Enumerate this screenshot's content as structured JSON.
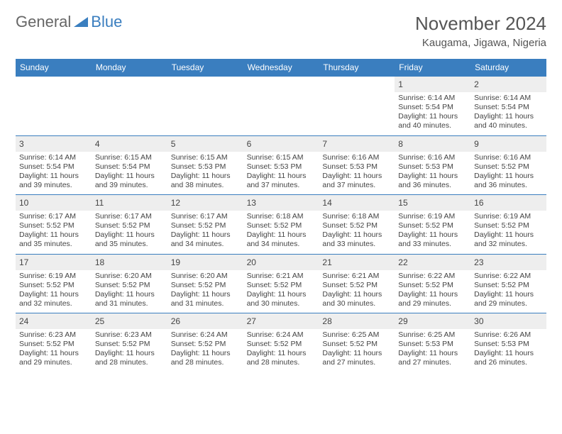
{
  "brand": {
    "general": "General",
    "blue": "Blue"
  },
  "title": "November 2024",
  "location": "Kaugama, Jigawa, Nigeria",
  "colors": {
    "header_bg": "#3a7ebf",
    "header_text": "#ffffff",
    "daynum_bg": "#eeeeee",
    "cell_border": "#3a7ebf",
    "text": "#444444",
    "page_bg": "#ffffff"
  },
  "day_headers": [
    "Sunday",
    "Monday",
    "Tuesday",
    "Wednesday",
    "Thursday",
    "Friday",
    "Saturday"
  ],
  "weeks": [
    [
      null,
      null,
      null,
      null,
      null,
      {
        "n": "1",
        "sunrise": "6:14 AM",
        "sunset": "5:54 PM",
        "dl": "11 hours and 40 minutes."
      },
      {
        "n": "2",
        "sunrise": "6:14 AM",
        "sunset": "5:54 PM",
        "dl": "11 hours and 40 minutes."
      }
    ],
    [
      {
        "n": "3",
        "sunrise": "6:14 AM",
        "sunset": "5:54 PM",
        "dl": "11 hours and 39 minutes."
      },
      {
        "n": "4",
        "sunrise": "6:15 AM",
        "sunset": "5:54 PM",
        "dl": "11 hours and 39 minutes."
      },
      {
        "n": "5",
        "sunrise": "6:15 AM",
        "sunset": "5:53 PM",
        "dl": "11 hours and 38 minutes."
      },
      {
        "n": "6",
        "sunrise": "6:15 AM",
        "sunset": "5:53 PM",
        "dl": "11 hours and 37 minutes."
      },
      {
        "n": "7",
        "sunrise": "6:16 AM",
        "sunset": "5:53 PM",
        "dl": "11 hours and 37 minutes."
      },
      {
        "n": "8",
        "sunrise": "6:16 AM",
        "sunset": "5:53 PM",
        "dl": "11 hours and 36 minutes."
      },
      {
        "n": "9",
        "sunrise": "6:16 AM",
        "sunset": "5:52 PM",
        "dl": "11 hours and 36 minutes."
      }
    ],
    [
      {
        "n": "10",
        "sunrise": "6:17 AM",
        "sunset": "5:52 PM",
        "dl": "11 hours and 35 minutes."
      },
      {
        "n": "11",
        "sunrise": "6:17 AM",
        "sunset": "5:52 PM",
        "dl": "11 hours and 35 minutes."
      },
      {
        "n": "12",
        "sunrise": "6:17 AM",
        "sunset": "5:52 PM",
        "dl": "11 hours and 34 minutes."
      },
      {
        "n": "13",
        "sunrise": "6:18 AM",
        "sunset": "5:52 PM",
        "dl": "11 hours and 34 minutes."
      },
      {
        "n": "14",
        "sunrise": "6:18 AM",
        "sunset": "5:52 PM",
        "dl": "11 hours and 33 minutes."
      },
      {
        "n": "15",
        "sunrise": "6:19 AM",
        "sunset": "5:52 PM",
        "dl": "11 hours and 33 minutes."
      },
      {
        "n": "16",
        "sunrise": "6:19 AM",
        "sunset": "5:52 PM",
        "dl": "11 hours and 32 minutes."
      }
    ],
    [
      {
        "n": "17",
        "sunrise": "6:19 AM",
        "sunset": "5:52 PM",
        "dl": "11 hours and 32 minutes."
      },
      {
        "n": "18",
        "sunrise": "6:20 AM",
        "sunset": "5:52 PM",
        "dl": "11 hours and 31 minutes."
      },
      {
        "n": "19",
        "sunrise": "6:20 AM",
        "sunset": "5:52 PM",
        "dl": "11 hours and 31 minutes."
      },
      {
        "n": "20",
        "sunrise": "6:21 AM",
        "sunset": "5:52 PM",
        "dl": "11 hours and 30 minutes."
      },
      {
        "n": "21",
        "sunrise": "6:21 AM",
        "sunset": "5:52 PM",
        "dl": "11 hours and 30 minutes."
      },
      {
        "n": "22",
        "sunrise": "6:22 AM",
        "sunset": "5:52 PM",
        "dl": "11 hours and 29 minutes."
      },
      {
        "n": "23",
        "sunrise": "6:22 AM",
        "sunset": "5:52 PM",
        "dl": "11 hours and 29 minutes."
      }
    ],
    [
      {
        "n": "24",
        "sunrise": "6:23 AM",
        "sunset": "5:52 PM",
        "dl": "11 hours and 29 minutes."
      },
      {
        "n": "25",
        "sunrise": "6:23 AM",
        "sunset": "5:52 PM",
        "dl": "11 hours and 28 minutes."
      },
      {
        "n": "26",
        "sunrise": "6:24 AM",
        "sunset": "5:52 PM",
        "dl": "11 hours and 28 minutes."
      },
      {
        "n": "27",
        "sunrise": "6:24 AM",
        "sunset": "5:52 PM",
        "dl": "11 hours and 28 minutes."
      },
      {
        "n": "28",
        "sunrise": "6:25 AM",
        "sunset": "5:52 PM",
        "dl": "11 hours and 27 minutes."
      },
      {
        "n": "29",
        "sunrise": "6:25 AM",
        "sunset": "5:53 PM",
        "dl": "11 hours and 27 minutes."
      },
      {
        "n": "30",
        "sunrise": "6:26 AM",
        "sunset": "5:53 PM",
        "dl": "11 hours and 26 minutes."
      }
    ]
  ],
  "labels": {
    "sunrise": "Sunrise:",
    "sunset": "Sunset:",
    "daylight": "Daylight:"
  }
}
